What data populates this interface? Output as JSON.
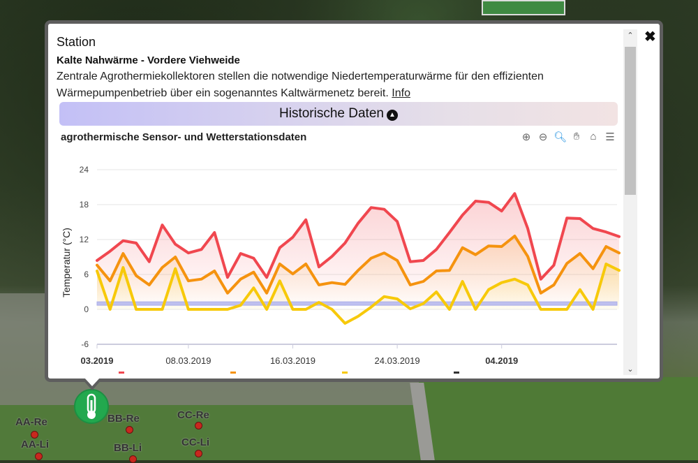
{
  "popup": {
    "title": "Station",
    "subtitle": "Kalte Nahwärme - Vordere Viehweide",
    "description": "Zentrale Agrothermiekollektoren stellen die notwendige Niedertemperaturwärme für den effizienten Wärmepumpenbetrieb über ein sogenanntes Kaltwärmenetz bereit.",
    "info_link": "Info",
    "history_button": "Historische Daten",
    "close_icon": "close-icon"
  },
  "toolbar": {
    "icons": [
      "zoom-in-icon",
      "zoom-out-icon",
      "zoom-select-icon",
      "pan-hand-icon",
      "home-icon",
      "menu-icon"
    ]
  },
  "map": {
    "labels": [
      "AA-Re",
      "AA-Li",
      "BB-Re",
      "BB-Li",
      "CC-Re",
      "CC-Li"
    ],
    "marker_icon": "thermometer-icon"
  },
  "chart_data": {
    "type": "area",
    "title": "agrothermische Sensor- und Wetterstationsdaten",
    "ylabel": "Temperatur (°C)",
    "xlabel": "",
    "ylim": [
      -6,
      24
    ],
    "yticks": [
      "24",
      "18",
      "12",
      "6",
      "0",
      "-6"
    ],
    "xticks": [
      "03.2019",
      "08.03.2019",
      "16.03.2019",
      "24.03.2019",
      "04.2019"
    ],
    "xtick_dates": [
      "2019-03-01",
      "2019-03-08",
      "2019-03-16",
      "2019-03-24",
      "2019-04-01"
    ],
    "x_start": "2019-03-01",
    "x": [
      "2019-03-01",
      "2019-03-02",
      "2019-03-03",
      "2019-03-04",
      "2019-03-05",
      "2019-03-06",
      "2019-03-07",
      "2019-03-08",
      "2019-03-09",
      "2019-03-10",
      "2019-03-11",
      "2019-03-12",
      "2019-03-13",
      "2019-03-14",
      "2019-03-15",
      "2019-03-16",
      "2019-03-17",
      "2019-03-18",
      "2019-03-19",
      "2019-03-20",
      "2019-03-21",
      "2019-03-22",
      "2019-03-23",
      "2019-03-24",
      "2019-03-25",
      "2019-03-26",
      "2019-03-27",
      "2019-03-28",
      "2019-03-29",
      "2019-03-30",
      "2019-03-31",
      "2019-04-01",
      "2019-04-02",
      "2019-04-03",
      "2019-04-04",
      "2019-04-05",
      "2019-04-06",
      "2019-04-07",
      "2019-04-08",
      "2019-04-09",
      "2019-04-10"
    ],
    "grid": true,
    "plot_band": [
      0.7,
      1.3
    ],
    "plot_band_color": "#b3b6f0",
    "series": [
      {
        "color": "#f0474f",
        "values": [
          8.4,
          10.0,
          11.8,
          11.4,
          8.2,
          14.5,
          11.2,
          9.7,
          10.3,
          13.2,
          5.5,
          9.6,
          8.8,
          5.5,
          10.6,
          12.4,
          15.4,
          7.3,
          9.1,
          11.4,
          14.8,
          17.5,
          17.2,
          15.1,
          8.2,
          8.4,
          10.3,
          13.2,
          16.2,
          18.6,
          18.4,
          16.9,
          19.9,
          13.9,
          5.2,
          7.6,
          15.7,
          15.6,
          13.9,
          13.3,
          12.5
        ]
      },
      {
        "color": "#f5930f",
        "values": [
          7.6,
          4.9,
          9.6,
          5.8,
          4.2,
          7.2,
          9.0,
          4.9,
          5.2,
          6.6,
          2.8,
          5.2,
          6.4,
          2.8,
          7.8,
          6.1,
          7.8,
          4.2,
          4.6,
          4.3,
          6.7,
          8.8,
          9.7,
          8.4,
          4.2,
          4.8,
          6.6,
          6.7,
          10.6,
          9.4,
          10.9,
          10.8,
          12.6,
          9.1,
          2.8,
          4.2,
          7.9,
          9.6,
          7.0,
          10.8,
          9.7
        ]
      },
      {
        "color": "#f7c90a",
        "values": [
          6.6,
          0,
          7.2,
          0,
          0,
          0,
          7.0,
          0,
          0,
          0,
          0,
          0.7,
          3.7,
          0,
          4.9,
          0,
          0,
          1.2,
          0,
          -2.4,
          -1.2,
          0.4,
          2.2,
          1.8,
          0.1,
          1.0,
          3.0,
          0,
          4.8,
          0,
          3.4,
          4.6,
          5.2,
          4.2,
          0,
          0,
          0,
          3.4,
          0,
          7.8,
          6.7
        ]
      }
    ],
    "legend_colors": [
      "#f0474f",
      "#f5930f",
      "#f7c90a",
      "#333333"
    ]
  }
}
